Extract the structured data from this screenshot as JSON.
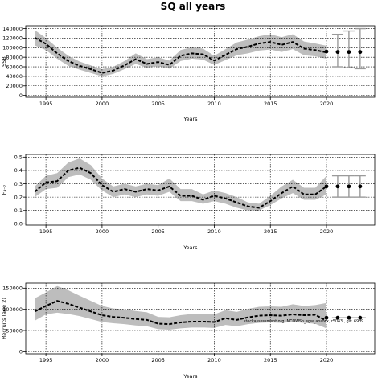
{
  "figure": {
    "title": "SQ all years",
    "credit": "stockassessment.org, NCOWSn_sgw_anatex, r5043 , git: 69d9"
  },
  "colors": {
    "band": "#bdbdbd",
    "line": "#000000",
    "projection": "#9a9a9a"
  },
  "chart_data": [
    {
      "type": "line",
      "panel": "ssb",
      "ylabel": "SSB",
      "xlabel": "Years",
      "xlim": [
        1993.2,
        2024.3
      ],
      "ylim": [
        -4000,
        146000
      ],
      "yticks": [
        0,
        20000,
        40000,
        60000,
        80000,
        100000,
        120000,
        140000
      ],
      "ytick_labels": [
        "0",
        "20000",
        "40000",
        "60000",
        "80000",
        "100000",
        "120000",
        "140000"
      ],
      "xticks": [
        1995,
        2000,
        2005,
        2010,
        2015,
        2020
      ],
      "grid": true,
      "x": [
        1994,
        1995,
        1996,
        1997,
        1998,
        1999,
        2000,
        2001,
        2002,
        2003,
        2004,
        2005,
        2006,
        2007,
        2008,
        2009,
        2010,
        2011,
        2012,
        2013,
        2014,
        2015,
        2016,
        2017,
        2018,
        2019,
        2020
      ],
      "estimate": [
        121000,
        108000,
        88000,
        72000,
        62000,
        55000,
        47000,
        52000,
        63000,
        76000,
        66000,
        70000,
        64000,
        83000,
        88000,
        86000,
        73000,
        85000,
        97000,
        102000,
        109000,
        112000,
        106000,
        112000,
        98000,
        95000,
        90000
      ],
      "lower": [
        105000,
        95000,
        77000,
        62000,
        54000,
        47000,
        40000,
        45000,
        55000,
        66000,
        58000,
        61000,
        56000,
        72000,
        77000,
        75000,
        64000,
        74000,
        84000,
        88000,
        94000,
        96000,
        91000,
        97000,
        84000,
        82000,
        77000
      ],
      "upper": [
        137000,
        120000,
        100000,
        83000,
        71000,
        63000,
        55000,
        60000,
        72000,
        88000,
        76000,
        80000,
        73000,
        95000,
        101000,
        98000,
        83000,
        97000,
        111000,
        117000,
        124000,
        128000,
        122000,
        128000,
        113000,
        109000,
        104000
      ],
      "projection": {
        "x": [
          2020,
          2021,
          2022,
          2023
        ],
        "estimate": [
          92000,
          91000,
          91000,
          91000
        ],
        "lower": [
          66000,
          60000,
          58000,
          56000
        ],
        "upper": [
          118000,
          128000,
          135000,
          140000
        ]
      }
    },
    {
      "type": "line",
      "panel": "fbar",
      "ylabel": "F₄₋₇",
      "xlabel": "Years",
      "xlim": [
        1993.2,
        2024.3
      ],
      "ylim": [
        -0.01,
        0.52
      ],
      "yticks": [
        0.0,
        0.1,
        0.2,
        0.3,
        0.4,
        0.5
      ],
      "ytick_labels": [
        "0.0",
        "0.1",
        "0.2",
        "0.3",
        "0.4",
        "0.5"
      ],
      "xticks": [
        1995,
        2000,
        2005,
        2010,
        2015,
        2020
      ],
      "grid": true,
      "x": [
        1994,
        1995,
        1996,
        1997,
        1998,
        1999,
        2000,
        2001,
        2002,
        2003,
        2004,
        2005,
        2006,
        2007,
        2008,
        2009,
        2010,
        2011,
        2012,
        2013,
        2014,
        2015,
        2016,
        2017,
        2018,
        2019,
        2020
      ],
      "estimate": [
        0.24,
        0.31,
        0.32,
        0.4,
        0.42,
        0.38,
        0.29,
        0.24,
        0.26,
        0.24,
        0.26,
        0.25,
        0.28,
        0.21,
        0.21,
        0.18,
        0.21,
        0.19,
        0.16,
        0.13,
        0.12,
        0.17,
        0.23,
        0.28,
        0.22,
        0.22,
        0.28
      ],
      "lower": [
        0.2,
        0.26,
        0.27,
        0.35,
        0.37,
        0.33,
        0.25,
        0.2,
        0.22,
        0.2,
        0.22,
        0.21,
        0.24,
        0.17,
        0.17,
        0.15,
        0.17,
        0.15,
        0.12,
        0.1,
        0.1,
        0.14,
        0.19,
        0.23,
        0.18,
        0.18,
        0.22
      ],
      "upper": [
        0.28,
        0.36,
        0.38,
        0.46,
        0.49,
        0.44,
        0.34,
        0.28,
        0.3,
        0.28,
        0.3,
        0.29,
        0.34,
        0.26,
        0.26,
        0.22,
        0.25,
        0.23,
        0.2,
        0.16,
        0.15,
        0.21,
        0.28,
        0.33,
        0.27,
        0.27,
        0.36
      ],
      "projection": {
        "x": [
          2020,
          2021,
          2022,
          2023
        ],
        "estimate": [
          0.28,
          0.28,
          0.28,
          0.28
        ],
        "lower": [
          0.21,
          0.2,
          0.2,
          0.2
        ],
        "upper": [
          0.36,
          0.36,
          0.36,
          0.36
        ]
      }
    },
    {
      "type": "line",
      "panel": "recruitment",
      "ylabel": "Recruits (age 2)",
      "xlabel": "Years",
      "xlim": [
        1993.2,
        2024.3
      ],
      "ylim": [
        -5000,
        162000
      ],
      "yticks": [
        0,
        50000,
        100000,
        150000
      ],
      "ytick_labels": [
        "0",
        "50000",
        "100000",
        "150000"
      ],
      "xticks": [
        1995,
        2000,
        2005,
        2010,
        2015,
        2020
      ],
      "grid": true,
      "x": [
        1994,
        1995,
        1996,
        1997,
        1998,
        1999,
        2000,
        2001,
        2002,
        2003,
        2004,
        2005,
        2006,
        2007,
        2008,
        2009,
        2010,
        2011,
        2012,
        2013,
        2014,
        2015,
        2016,
        2017,
        2018,
        2019,
        2020
      ],
      "estimate": [
        95000,
        108000,
        120000,
        113000,
        104000,
        95000,
        86000,
        82000,
        80000,
        77000,
        75000,
        66000,
        65000,
        69000,
        71000,
        71000,
        70000,
        79000,
        75000,
        81000,
        85000,
        86000,
        85000,
        88000,
        86000,
        87000,
        73000
      ],
      "lower": [
        73000,
        88000,
        92000,
        89000,
        84000,
        77000,
        70000,
        67000,
        65000,
        62000,
        60000,
        53000,
        52000,
        55000,
        57000,
        57000,
        56000,
        63000,
        60000,
        65000,
        68000,
        69000,
        68000,
        70000,
        68000,
        66000,
        55000
      ],
      "upper": [
        126000,
        140000,
        155000,
        145000,
        132000,
        120000,
        108000,
        102000,
        100000,
        96000,
        93000,
        82000,
        81000,
        86000,
        89000,
        89000,
        88000,
        98000,
        94000,
        101000,
        106000,
        107000,
        106000,
        112000,
        108000,
        110000,
        115000
      ],
      "projection": {
        "x": [
          2020,
          2021,
          2022,
          2023
        ],
        "estimate": [
          80000,
          80000,
          80000,
          80000
        ],
        "lower": [
          80000,
          80000,
          80000,
          80000
        ],
        "upper": [
          80000,
          80000,
          80000,
          80000
        ]
      }
    }
  ]
}
